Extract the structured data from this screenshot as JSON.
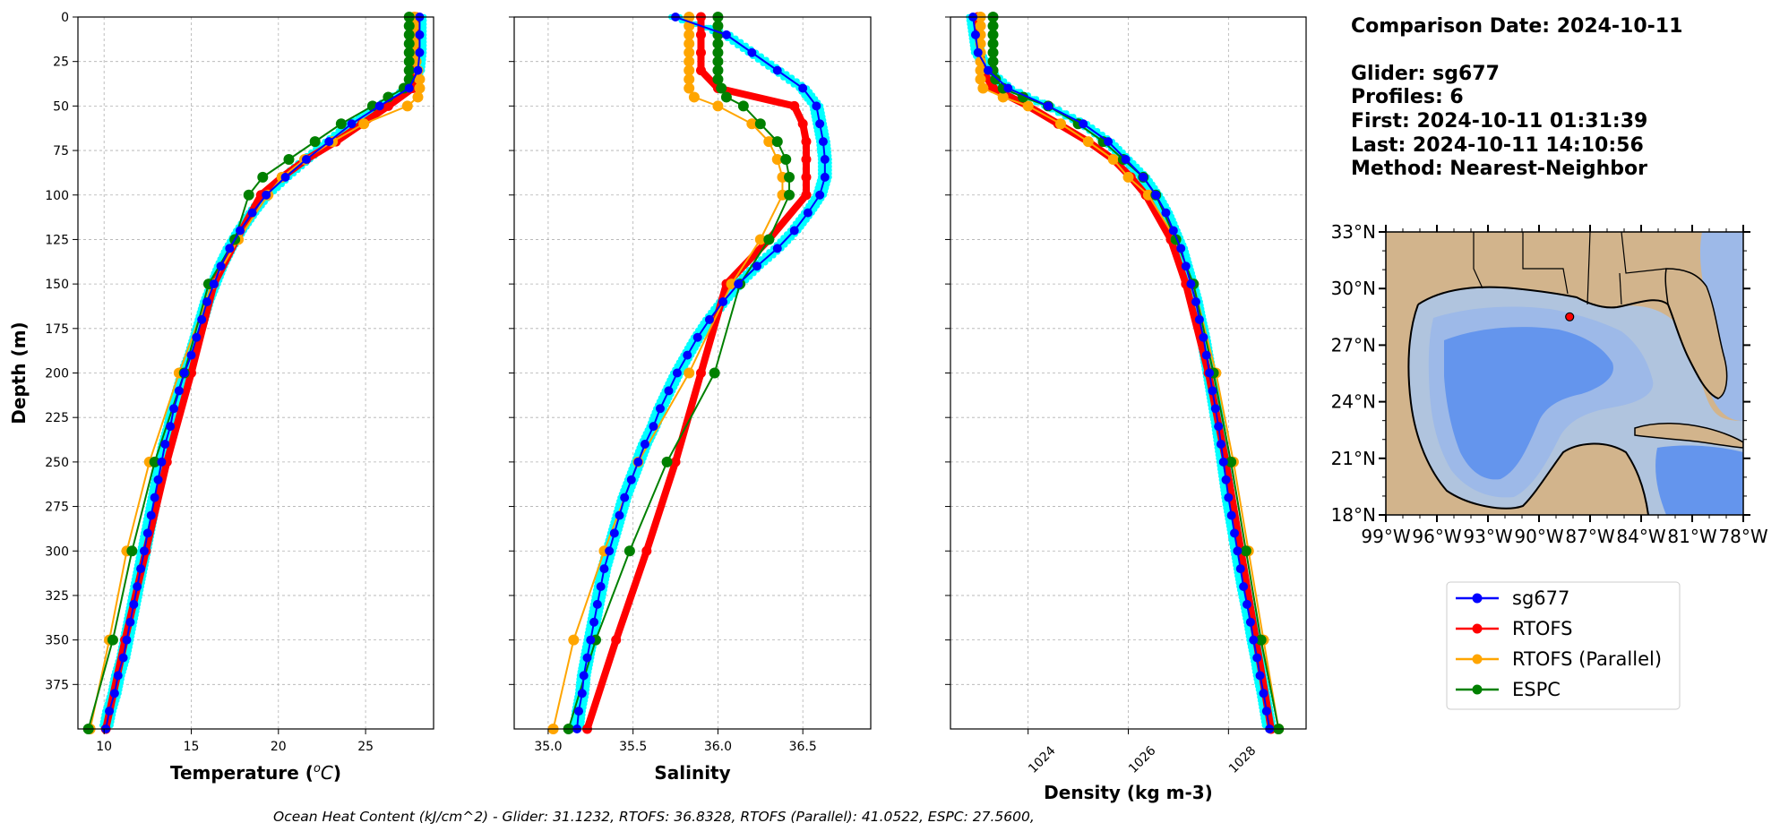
{
  "info": {
    "comparison_date": "Comparison Date: 2024-10-11",
    "glider": "Glider: sg677",
    "profiles": "Profiles: 6",
    "first": "First: 2024-10-11 01:31:39",
    "last": "Last: 2024-10-11 14:10:56",
    "method": "Method: Nearest-Neighbor"
  },
  "footer": "Ocean Heat Content (kJ/cm^2) - Glider: 31.1232,  RTOFS: 36.8328,  RTOFS (Parallel): 41.0522,  ESPC: 27.5600,",
  "colors": {
    "glider": "#0000ff",
    "glider_scatter": "#00ffff",
    "rtofs": "#ff0000",
    "rtofs_parallel": "#ffa500",
    "espc": "#008000",
    "land": "#d2b48c",
    "shelf": "#b0c4de",
    "slope": "#9db9e8",
    "deep": "#6495ed"
  },
  "chart_data": [
    {
      "type": "line",
      "panel": "temperature",
      "xlabel": "Temperature ($^oC$)",
      "ylabel": "Depth (m)",
      "xlim": [
        8.5,
        28.9
      ],
      "ylim": [
        400,
        0
      ],
      "xticks": [
        "10",
        "15",
        "20",
        "25"
      ],
      "yticks": [
        "0",
        "25",
        "50",
        "75",
        "100",
        "125",
        "150",
        "175",
        "200",
        "225",
        "250",
        "275",
        "300",
        "325",
        "350",
        "375"
      ],
      "grid": true,
      "series": [
        {
          "name": "sg677",
          "depth": [
            0,
            10,
            20,
            30,
            40,
            50,
            60,
            70,
            80,
            90,
            100,
            110,
            120,
            130,
            140,
            150,
            160,
            170,
            180,
            190,
            200,
            210,
            220,
            230,
            240,
            250,
            260,
            270,
            280,
            290,
            300,
            310,
            320,
            330,
            340,
            350,
            360,
            370,
            380,
            390,
            400
          ],
          "values": [
            28.1,
            28.1,
            28.1,
            28.0,
            27.5,
            25.8,
            24.2,
            22.9,
            21.6,
            20.4,
            19.3,
            18.5,
            17.8,
            17.2,
            16.7,
            16.3,
            15.9,
            15.6,
            15.3,
            15.0,
            14.6,
            14.3,
            14.0,
            13.8,
            13.5,
            13.3,
            13.1,
            12.9,
            12.7,
            12.5,
            12.3,
            12.1,
            11.9,
            11.7,
            11.5,
            11.3,
            11.1,
            10.8,
            10.6,
            10.3,
            10.1
          ]
        },
        {
          "name": "RTOFS",
          "depth": [
            0,
            10,
            20,
            30,
            40,
            50,
            60,
            70,
            80,
            90,
            100,
            125,
            150,
            200,
            250,
            300,
            350,
            400
          ],
          "values": [
            27.9,
            27.9,
            27.9,
            27.9,
            27.7,
            26.3,
            24.8,
            23.3,
            21.6,
            20.2,
            19.0,
            17.6,
            16.3,
            15.0,
            13.6,
            12.4,
            11.2,
            10.1
          ]
        },
        {
          "name": "RTOFS (Parallel)",
          "depth": [
            0,
            5,
            10,
            15,
            20,
            25,
            30,
            35,
            40,
            45,
            50,
            60,
            70,
            80,
            90,
            100,
            125,
            150,
            200,
            250,
            300,
            350,
            400
          ],
          "values": [
            27.8,
            27.8,
            27.8,
            27.8,
            27.8,
            27.9,
            28.0,
            28.1,
            28.1,
            28.0,
            27.4,
            24.9,
            23.1,
            21.5,
            20.2,
            19.4,
            17.7,
            16.2,
            14.3,
            12.6,
            11.3,
            10.3,
            9.2
          ]
        },
        {
          "name": "ESPC",
          "depth": [
            0,
            5,
            10,
            15,
            20,
            25,
            30,
            35,
            40,
            45,
            50,
            60,
            70,
            80,
            90,
            100,
            125,
            150,
            200,
            250,
            300,
            350,
            400
          ],
          "values": [
            27.5,
            27.5,
            27.5,
            27.5,
            27.5,
            27.5,
            27.5,
            27.5,
            27.2,
            26.3,
            25.4,
            23.6,
            22.1,
            20.6,
            19.1,
            18.3,
            17.5,
            16.0,
            14.6,
            12.9,
            11.6,
            10.5,
            9.1
          ]
        }
      ]
    },
    {
      "type": "line",
      "panel": "salinity",
      "xlabel": "Salinity",
      "xlim": [
        34.8,
        36.9
      ],
      "ylim": [
        400,
        0
      ],
      "xticks": [
        "35.0",
        "35.5",
        "36.0",
        "36.5"
      ],
      "grid": true,
      "series": [
        {
          "name": "sg677",
          "depth": [
            0,
            10,
            20,
            30,
            40,
            50,
            60,
            70,
            80,
            90,
            100,
            110,
            120,
            130,
            140,
            150,
            160,
            170,
            180,
            190,
            200,
            210,
            220,
            230,
            240,
            250,
            260,
            270,
            280,
            290,
            300,
            310,
            320,
            330,
            340,
            350,
            360,
            370,
            380,
            390,
            400
          ],
          "values": [
            35.75,
            36.05,
            36.2,
            36.35,
            36.5,
            36.58,
            36.6,
            36.62,
            36.63,
            36.63,
            36.6,
            36.53,
            36.45,
            36.35,
            36.23,
            36.12,
            36.03,
            35.95,
            35.88,
            35.82,
            35.76,
            35.71,
            35.66,
            35.62,
            35.57,
            35.53,
            35.49,
            35.45,
            35.42,
            35.39,
            35.36,
            35.33,
            35.31,
            35.29,
            35.27,
            35.25,
            35.23,
            35.21,
            35.2,
            35.18,
            35.17
          ]
        },
        {
          "name": "RTOFS",
          "depth": [
            0,
            10,
            20,
            30,
            40,
            50,
            60,
            70,
            80,
            90,
            100,
            125,
            150,
            200,
            250,
            300,
            350,
            400
          ],
          "values": [
            35.9,
            35.9,
            35.9,
            35.9,
            36.0,
            36.45,
            36.5,
            36.52,
            36.52,
            36.52,
            36.52,
            36.3,
            36.05,
            35.9,
            35.75,
            35.58,
            35.4,
            35.23
          ]
        },
        {
          "name": "RTOFS (Parallel)",
          "depth": [
            0,
            5,
            10,
            15,
            20,
            25,
            30,
            35,
            40,
            45,
            50,
            60,
            70,
            80,
            90,
            100,
            125,
            150,
            200,
            250,
            300,
            350,
            400
          ],
          "values": [
            35.83,
            35.83,
            35.83,
            35.83,
            35.83,
            35.83,
            35.83,
            35.83,
            35.83,
            35.86,
            36.0,
            36.2,
            36.3,
            36.35,
            36.38,
            36.38,
            36.25,
            36.08,
            35.83,
            35.53,
            35.33,
            35.15,
            35.03
          ]
        },
        {
          "name": "ESPC",
          "depth": [
            0,
            5,
            10,
            15,
            20,
            25,
            30,
            35,
            40,
            45,
            50,
            60,
            70,
            80,
            90,
            100,
            125,
            150,
            200,
            250,
            300,
            350,
            400
          ],
          "values": [
            36.0,
            36.0,
            36.0,
            36.0,
            36.0,
            36.0,
            36.0,
            36.0,
            36.02,
            36.05,
            36.15,
            36.25,
            36.35,
            36.4,
            36.42,
            36.42,
            36.3,
            36.13,
            35.98,
            35.7,
            35.48,
            35.28,
            35.12
          ]
        }
      ]
    },
    {
      "type": "line",
      "panel": "density",
      "xlabel": "Density (kg m-3)",
      "xlim": [
        1022.45,
        1029.55
      ],
      "ylim": [
        400,
        0
      ],
      "xticks": [
        "1024",
        "1026",
        "1028"
      ],
      "grid": true,
      "series": [
        {
          "name": "sg677",
          "depth": [
            0,
            10,
            20,
            30,
            40,
            50,
            60,
            70,
            80,
            90,
            100,
            110,
            120,
            130,
            140,
            150,
            160,
            170,
            180,
            190,
            200,
            210,
            220,
            230,
            240,
            250,
            260,
            270,
            280,
            290,
            300,
            310,
            320,
            330,
            340,
            350,
            360,
            370,
            380,
            390,
            400
          ],
          "values": [
            1022.9,
            1022.95,
            1023.0,
            1023.2,
            1023.6,
            1024.4,
            1025.1,
            1025.6,
            1025.95,
            1026.3,
            1026.55,
            1026.75,
            1026.9,
            1027.05,
            1027.15,
            1027.25,
            1027.35,
            1027.42,
            1027.5,
            1027.56,
            1027.62,
            1027.68,
            1027.74,
            1027.8,
            1027.85,
            1027.9,
            1027.95,
            1028.0,
            1028.06,
            1028.12,
            1028.18,
            1028.24,
            1028.3,
            1028.37,
            1028.44,
            1028.5,
            1028.57,
            1028.63,
            1028.7,
            1028.76,
            1028.82
          ]
        },
        {
          "name": "RTOFS",
          "depth": [
            0,
            10,
            20,
            30,
            40,
            50,
            60,
            70,
            80,
            90,
            100,
            125,
            150,
            200,
            250,
            300,
            350,
            400
          ],
          "values": [
            1023.0,
            1023.0,
            1023.05,
            1023.1,
            1023.3,
            1024.0,
            1024.6,
            1025.2,
            1025.7,
            1026.05,
            1026.35,
            1026.85,
            1027.15,
            1027.6,
            1027.95,
            1028.25,
            1028.55,
            1028.85
          ]
        },
        {
          "name": "RTOFS (Parallel)",
          "depth": [
            0,
            5,
            10,
            15,
            20,
            25,
            30,
            35,
            40,
            45,
            50,
            60,
            70,
            80,
            90,
            100,
            125,
            150,
            200,
            250,
            300,
            350,
            400
          ],
          "values": [
            1023.05,
            1023.05,
            1023.05,
            1023.05,
            1023.05,
            1023.05,
            1023.05,
            1023.05,
            1023.1,
            1023.5,
            1024.0,
            1024.65,
            1025.2,
            1025.7,
            1026.0,
            1026.4,
            1026.95,
            1027.3,
            1027.75,
            1028.1,
            1028.4,
            1028.7,
            1029.0
          ]
        },
        {
          "name": "ESPC",
          "depth": [
            0,
            5,
            10,
            15,
            20,
            25,
            30,
            35,
            40,
            45,
            50,
            60,
            70,
            80,
            90,
            100,
            125,
            150,
            200,
            250,
            300,
            350,
            400
          ],
          "values": [
            1023.3,
            1023.3,
            1023.3,
            1023.3,
            1023.3,
            1023.3,
            1023.3,
            1023.35,
            1023.5,
            1023.9,
            1024.4,
            1025.0,
            1025.5,
            1025.9,
            1026.3,
            1026.55,
            1026.95,
            1027.3,
            1027.7,
            1028.05,
            1028.35,
            1028.65,
            1029.0
          ]
        }
      ]
    }
  ],
  "map": {
    "lat_ticks": [
      "33°N",
      "30°N",
      "27°N",
      "24°N",
      "21°N",
      "18°N"
    ],
    "lon_ticks": [
      "99°W",
      "96°W",
      "93°W",
      "90°W",
      "87°W",
      "84°W",
      "81°W",
      "78°W"
    ],
    "lon_range": [
      -99,
      -78
    ],
    "lat_range": [
      18,
      33
    ],
    "glider_position": {
      "lon": -88.2,
      "lat": 28.5
    }
  },
  "legend": [
    "sg677",
    "RTOFS",
    "RTOFS (Parallel)",
    "ESPC"
  ]
}
